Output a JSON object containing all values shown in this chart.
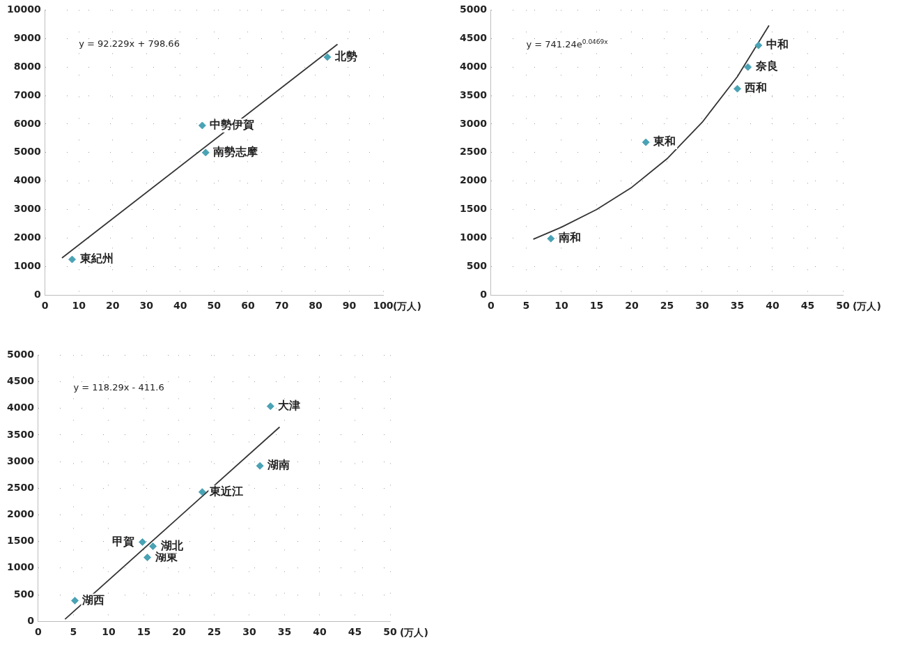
{
  "chart_data": [
    {
      "type": "scatter",
      "xlabel": "(万人)",
      "xlim": [
        0,
        100
      ],
      "xticks": [
        0,
        10,
        20,
        30,
        40,
        50,
        60,
        70,
        80,
        90,
        100
      ],
      "ylim": [
        0,
        10000
      ],
      "yticks": [
        0,
        1000,
        2000,
        3000,
        4000,
        5000,
        6000,
        7000,
        8000,
        9000,
        10000
      ],
      "grid": true,
      "series": [
        {
          "type": "scatter",
          "marker": "diamond",
          "color": "#4aa3b5",
          "x": [
            8,
            46.5,
            47.5,
            83.5
          ],
          "values": [
            1250,
            5950,
            5000,
            8350
          ]
        },
        {
          "type": "line",
          "marker": "none",
          "color": "#333333",
          "x": [
            5,
            86.5
          ],
          "values": [
            1300,
            8800
          ]
        }
      ],
      "annotations": [
        "y = 92.229x + 798.66",
        {
          "text": "東紀州",
          "x": 8,
          "y": 1250
        },
        {
          "text": "中勢伊賀",
          "x": 46.5,
          "y": 5950
        },
        {
          "text": "南勢志摩",
          "x": 47.5,
          "y": 5000
        },
        {
          "text": "北勢",
          "x": 83.5,
          "y": 8350
        }
      ]
    },
    {
      "type": "scatter",
      "xlabel": "(万人)",
      "xlim": [
        0,
        50
      ],
      "xticks": [
        0,
        5,
        10,
        15,
        20,
        25,
        30,
        35,
        40,
        45,
        50
      ],
      "ylim": [
        0,
        5000
      ],
      "yticks": [
        0,
        500,
        1000,
        1500,
        2000,
        2500,
        3000,
        3500,
        4000,
        4500,
        5000
      ],
      "grid": true,
      "series": [
        {
          "type": "scatter",
          "marker": "diamond",
          "color": "#4aa3b5",
          "x": [
            8.5,
            22,
            35,
            36.5,
            38
          ],
          "values": [
            990,
            2680,
            3620,
            4000,
            4380
          ]
        },
        {
          "type": "line",
          "marker": "none",
          "color": "#333333",
          "x": [
            6,
            10,
            15,
            20,
            25,
            30,
            35,
            39.5
          ],
          "values": [
            980,
            1190,
            1500,
            1890,
            2390,
            3030,
            3830,
            4730
          ]
        }
      ],
      "annotations": [
        "y = 741.24e$^{0.0469x}$",
        {
          "text": "南和",
          "x": 8.5,
          "y": 990
        },
        {
          "text": "東和",
          "x": 22,
          "y": 2680
        },
        {
          "text": "西和",
          "x": 35,
          "y": 3620
        },
        {
          "text": "奈良",
          "x": 36.5,
          "y": 4000
        },
        {
          "text": "中和",
          "x": 38,
          "y": 4380
        }
      ]
    },
    {
      "type": "scatter",
      "xlabel": "(万人)",
      "xlim": [
        0,
        50
      ],
      "xticks": [
        0,
        5,
        10,
        15,
        20,
        25,
        30,
        35,
        40,
        45,
        50
      ],
      "ylim": [
        0,
        5000
      ],
      "yticks": [
        0,
        500,
        1000,
        1500,
        2000,
        2500,
        3000,
        3500,
        4000,
        4500,
        5000
      ],
      "grid": true,
      "series": [
        {
          "type": "scatter",
          "marker": "diamond",
          "color": "#4aa3b5",
          "x": [
            5.2,
            14.8,
            15.5,
            16.3,
            23.3,
            31.5,
            33
          ],
          "values": [
            390,
            1490,
            1200,
            1410,
            2430,
            2920,
            4040
          ]
        },
        {
          "type": "line",
          "marker": "none",
          "color": "#333333",
          "x": [
            3.8,
            34.3
          ],
          "values": [
            40,
            3650
          ]
        }
      ],
      "annotations": [
        "y = 118.29x - 411.6",
        {
          "text": "湖西",
          "x": 5.2,
          "y": 390
        },
        {
          "text": "甲賀",
          "x": 14.8,
          "y": 1490
        },
        {
          "text": "湖東",
          "x": 15.5,
          "y": 1200
        },
        {
          "text": "湖北",
          "x": 16.3,
          "y": 1410
        },
        {
          "text": "東近江",
          "x": 23.3,
          "y": 2430
        },
        {
          "text": "湖南",
          "x": 31.5,
          "y": 2920
        },
        {
          "text": "大津",
          "x": 33,
          "y": 4040
        }
      ]
    }
  ]
}
